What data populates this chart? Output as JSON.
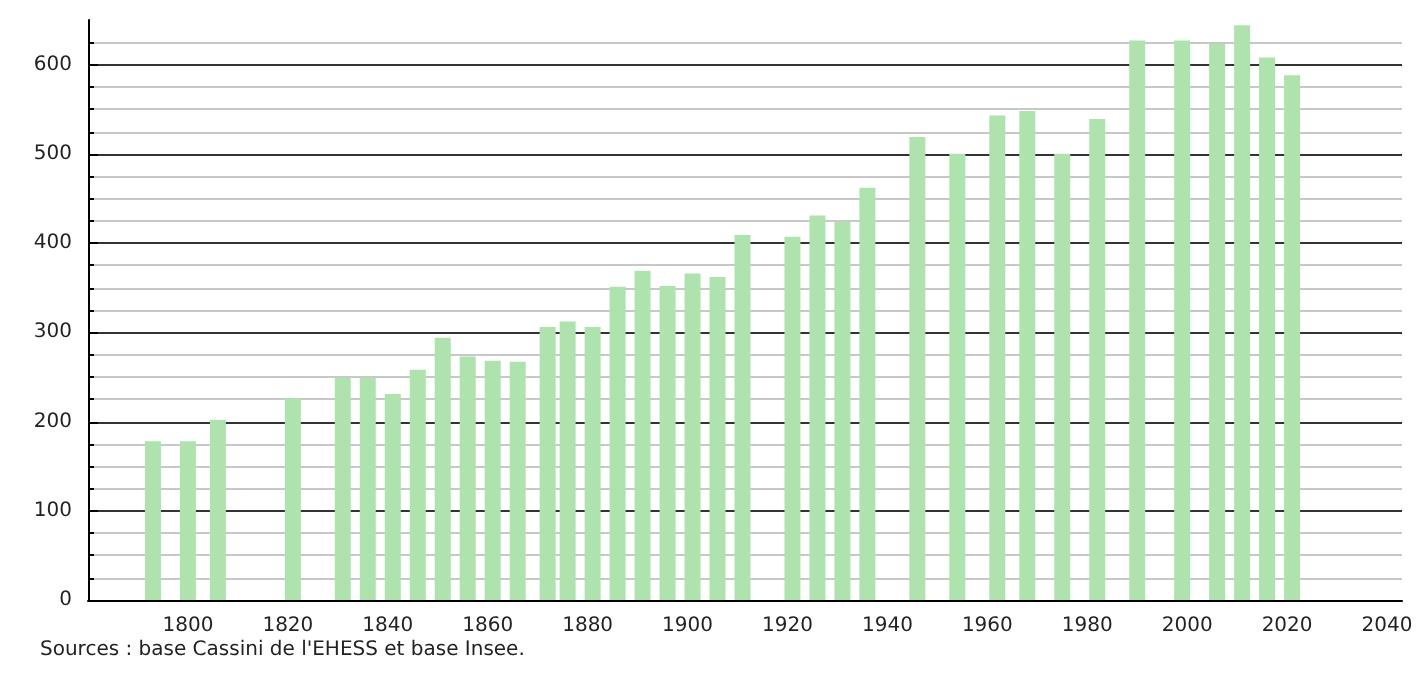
{
  "chart_data": {
    "type": "bar",
    "annotations": [
      "Sources : base Cassini de l'EHESS et base Insee."
    ],
    "x": [
      1793,
      1800,
      1806,
      1821,
      1831,
      1836,
      1841,
      1846,
      1851,
      1856,
      1861,
      1866,
      1872,
      1876,
      1881,
      1886,
      1891,
      1896,
      1901,
      1906,
      1911,
      1921,
      1926,
      1931,
      1936,
      1946,
      1954,
      1962,
      1968,
      1975,
      1982,
      1990,
      1999,
      2006,
      2011,
      2016,
      2021
    ],
    "values": [
      178,
      178,
      202,
      226,
      249,
      249,
      231,
      258,
      294,
      273,
      268,
      267,
      306,
      312,
      306,
      351,
      369,
      352,
      366,
      362,
      409,
      407,
      431,
      424,
      462,
      519,
      500,
      543,
      548,
      500,
      539,
      627,
      627,
      623,
      644,
      608,
      588
    ],
    "color": "#aee3ae",
    "xlim": [
      1780,
      2043
    ],
    "xticks": [
      1800,
      1820,
      1840,
      1860,
      1880,
      1900,
      1920,
      1940,
      1960,
      1980,
      2000,
      2020,
      2040
    ],
    "ylim": [
      0,
      650
    ],
    "yticks": [
      0,
      100,
      200,
      300,
      400,
      500,
      600
    ],
    "grid": "y"
  }
}
